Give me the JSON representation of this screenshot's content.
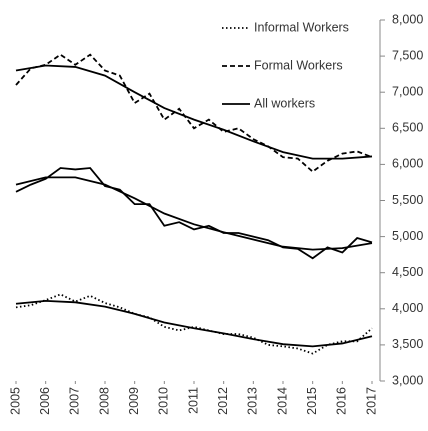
{
  "chart_data": {
    "type": "line",
    "xlim": [
      2005,
      2017
    ],
    "xticks": [
      2005,
      2006,
      2007,
      2008,
      2009,
      2010,
      2011,
      2012,
      2013,
      2014,
      2015,
      2016,
      2017
    ],
    "ylim": [
      3000,
      8000
    ],
    "yticks": [
      {
        "value": 3000,
        "label": "3,000"
      },
      {
        "value": 3500,
        "label": "3,500"
      },
      {
        "value": 4000,
        "label": "4,000"
      },
      {
        "value": 4500,
        "label": "4,500"
      },
      {
        "value": 5000,
        "label": "5,000"
      },
      {
        "value": 5500,
        "label": "5,500"
      },
      {
        "value": 6000,
        "label": "6,000"
      },
      {
        "value": 6500,
        "label": "6,500"
      },
      {
        "value": 7000,
        "label": "7,000"
      },
      {
        "value": 7500,
        "label": "7,500"
      },
      {
        "value": 8000,
        "label": "8,000"
      }
    ],
    "y_axis_side": "right",
    "legend": "top-right",
    "series": [
      {
        "name": "Informal Workers",
        "color": "#000000",
        "line_style": "dotted",
        "x": [
          2005,
          2005.5,
          2006,
          2006.5,
          2007,
          2007.5,
          2008,
          2008.5,
          2009,
          2009.5,
          2010,
          2010.5,
          2011,
          2011.5,
          2012,
          2012.5,
          2013,
          2013.5,
          2014,
          2014.5,
          2015,
          2015.5,
          2016,
          2016.5,
          2017
        ],
        "values": [
          4020,
          4050,
          4120,
          4200,
          4100,
          4180,
          4080,
          4020,
          3930,
          3880,
          3750,
          3700,
          3750,
          3700,
          3650,
          3650,
          3600,
          3500,
          3480,
          3450,
          3380,
          3500,
          3550,
          3550,
          3730
        ]
      },
      {
        "name": "Formal Workers",
        "color": "#000000",
        "line_style": "dashed",
        "x": [
          2005,
          2005.5,
          2006,
          2006.5,
          2007,
          2007.5,
          2008,
          2008.5,
          2009,
          2009.5,
          2010,
          2010.5,
          2011,
          2011.5,
          2012,
          2012.5,
          2013,
          2013.5,
          2014,
          2014.5,
          2015,
          2015.5,
          2016,
          2016.5,
          2017
        ],
        "values": [
          7100,
          7330,
          7380,
          7520,
          7380,
          7520,
          7300,
          7230,
          6850,
          6980,
          6620,
          6770,
          6500,
          6620,
          6450,
          6500,
          6350,
          6250,
          6100,
          6080,
          5900,
          6050,
          6150,
          6180,
          6100
        ]
      },
      {
        "name": "All workers",
        "color": "#000000",
        "line_style": "solid",
        "x": [
          2005,
          2005.5,
          2006,
          2006.5,
          2007,
          2007.5,
          2008,
          2008.5,
          2009,
          2009.5,
          2010,
          2010.5,
          2011,
          2011.5,
          2012,
          2012.5,
          2013,
          2013.5,
          2014,
          2014.5,
          2015,
          2015.5,
          2016,
          2016.5,
          2017
        ],
        "values": [
          5620,
          5720,
          5800,
          5950,
          5930,
          5950,
          5700,
          5650,
          5450,
          5450,
          5150,
          5200,
          5100,
          5150,
          5050,
          5050,
          5000,
          4950,
          4850,
          4830,
          4700,
          4850,
          4780,
          4980,
          4920
        ]
      },
      {
        "color": "#000000",
        "line_style": "solid",
        "x": [
          2005,
          2006,
          2007,
          2008,
          2009,
          2010,
          2011,
          2012,
          2013,
          2014,
          2015,
          2016,
          2017
        ],
        "values": [
          7300,
          7370,
          7350,
          7230,
          7000,
          6780,
          6620,
          6480,
          6320,
          6170,
          6080,
          6080,
          6110
        ]
      },
      {
        "color": "#000000",
        "line_style": "solid",
        "x": [
          2005,
          2006,
          2007,
          2008,
          2009,
          2010,
          2011,
          2012,
          2013,
          2014,
          2015,
          2016,
          2017
        ],
        "values": [
          5720,
          5820,
          5820,
          5720,
          5530,
          5320,
          5170,
          5060,
          4960,
          4860,
          4820,
          4840,
          4910
        ]
      },
      {
        "color": "#000000",
        "line_style": "solid",
        "x": [
          2005,
          2006,
          2007,
          2008,
          2009,
          2010,
          2011,
          2012,
          2013,
          2014,
          2015,
          2016,
          2017
        ],
        "values": [
          4070,
          4110,
          4090,
          4030,
          3930,
          3810,
          3730,
          3660,
          3580,
          3510,
          3480,
          3520,
          3620
        ]
      }
    ]
  }
}
